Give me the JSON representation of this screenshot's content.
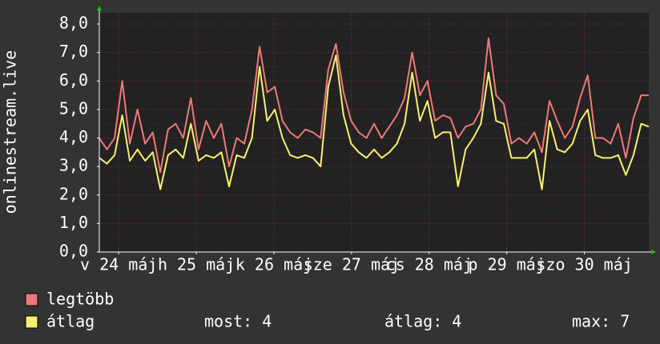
{
  "chart_data": {
    "type": "line",
    "ylabel": "onlinestream.live",
    "ylim": [
      0,
      8
    ],
    "yticks": [
      {
        "value": 0,
        "label": "0,0"
      },
      {
        "value": 1,
        "label": "1,0"
      },
      {
        "value": 2,
        "label": "2,0"
      },
      {
        "value": 3,
        "label": "3,0"
      },
      {
        "value": 4,
        "label": "4,0"
      },
      {
        "value": 5,
        "label": "5,0"
      },
      {
        "value": 6,
        "label": "6,0"
      },
      {
        "value": 7,
        "label": "7,0"
      },
      {
        "value": 8,
        "label": "8,0"
      }
    ],
    "xlim": [
      23.75,
      30.83
    ],
    "xticks": [
      {
        "value": 24,
        "label": "v 24 máj"
      },
      {
        "value": 25,
        "label": "h 25 máj"
      },
      {
        "value": 26,
        "label": "k 26 máj"
      },
      {
        "value": 27,
        "label": "sze 27 máj"
      },
      {
        "value": 28,
        "label": "cs 28 máj"
      },
      {
        "value": 29,
        "label": "p 29 máj"
      },
      {
        "value": 30,
        "label": "szo 30 máj"
      }
    ],
    "grid": true,
    "series": [
      {
        "name": "legtöbb",
        "color": "#f07878",
        "values": [
          4.0,
          3.6,
          4.0,
          6.0,
          3.8,
          5.0,
          3.8,
          4.2,
          2.8,
          4.3,
          4.5,
          4.0,
          5.4,
          3.6,
          4.6,
          4.0,
          4.5,
          3.0,
          4.0,
          3.8,
          5.0,
          7.2,
          5.6,
          5.8,
          4.6,
          4.2,
          4.0,
          4.3,
          4.2,
          4.0,
          6.4,
          7.3,
          5.6,
          4.6,
          4.2,
          4.0,
          4.5,
          4.0,
          4.4,
          4.8,
          5.4,
          7.0,
          5.5,
          6.0,
          4.6,
          4.8,
          4.7,
          4.0,
          4.4,
          4.5,
          5.0,
          7.5,
          5.5,
          5.2,
          3.8,
          4.0,
          3.8,
          4.2,
          3.5,
          5.3,
          4.6,
          4.0,
          4.4,
          5.4,
          6.2,
          4.0,
          4.0,
          3.8,
          4.5,
          3.3,
          4.7,
          5.5,
          5.5
        ]
      },
      {
        "name": "átlag",
        "color": "#f8f070",
        "values": [
          3.3,
          3.1,
          3.4,
          4.8,
          3.2,
          3.6,
          3.2,
          3.5,
          2.2,
          3.4,
          3.6,
          3.3,
          4.5,
          3.2,
          3.4,
          3.3,
          3.5,
          2.3,
          3.4,
          3.3,
          4.0,
          6.5,
          4.6,
          5.0,
          4.0,
          3.4,
          3.3,
          3.4,
          3.3,
          3.0,
          5.8,
          6.9,
          4.8,
          3.8,
          3.5,
          3.3,
          3.6,
          3.3,
          3.5,
          3.8,
          4.5,
          6.3,
          4.6,
          5.3,
          4.0,
          4.2,
          4.2,
          2.3,
          3.6,
          4.0,
          4.5,
          6.3,
          4.6,
          4.5,
          3.3,
          3.3,
          3.3,
          3.6,
          2.2,
          4.6,
          3.6,
          3.5,
          3.8,
          4.6,
          5.0,
          3.4,
          3.3,
          3.3,
          3.4,
          2.7,
          3.4,
          4.5,
          4.4
        ]
      }
    ],
    "stats": [
      "most: 4",
      "átlag: 4",
      "max: 7"
    ]
  }
}
